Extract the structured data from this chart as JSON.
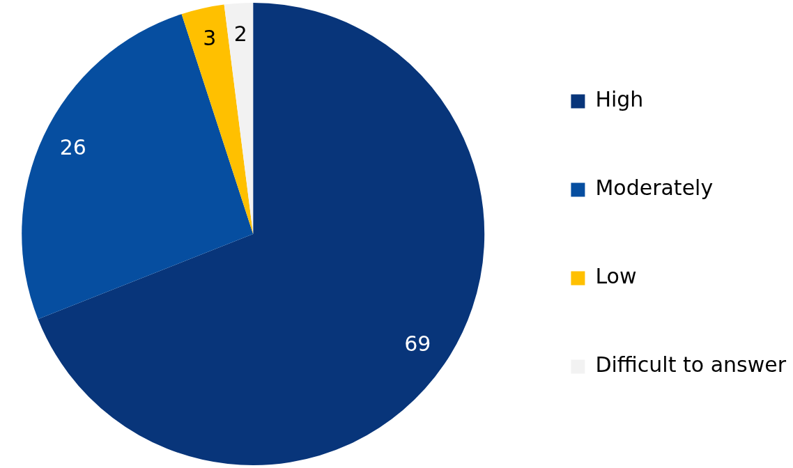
{
  "chart_data": {
    "type": "pie",
    "categories": [
      "High",
      "Moderately",
      "Low",
      "Difficult to answer"
    ],
    "values": [
      69,
      26,
      3,
      2
    ],
    "colors": [
      "#08357a",
      "#064ea0",
      "#ffc000",
      "#f2f2f2"
    ],
    "data_labels": true,
    "legend": "right"
  }
}
